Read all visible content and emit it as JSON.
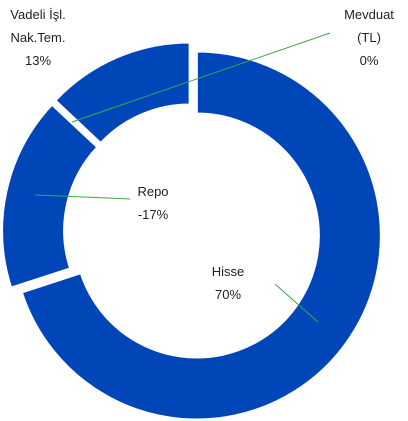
{
  "chart_data": {
    "type": "donut",
    "categories": [
      "Hisse",
      "Repo",
      "Vadeli İşl. Nak.Tem.",
      "Mevduat (TL)"
    ],
    "values": [
      70,
      -17,
      13,
      0
    ],
    "value_labels": [
      "70%",
      "-17%",
      "13%",
      "0%"
    ],
    "color": "#0046b8"
  }
}
